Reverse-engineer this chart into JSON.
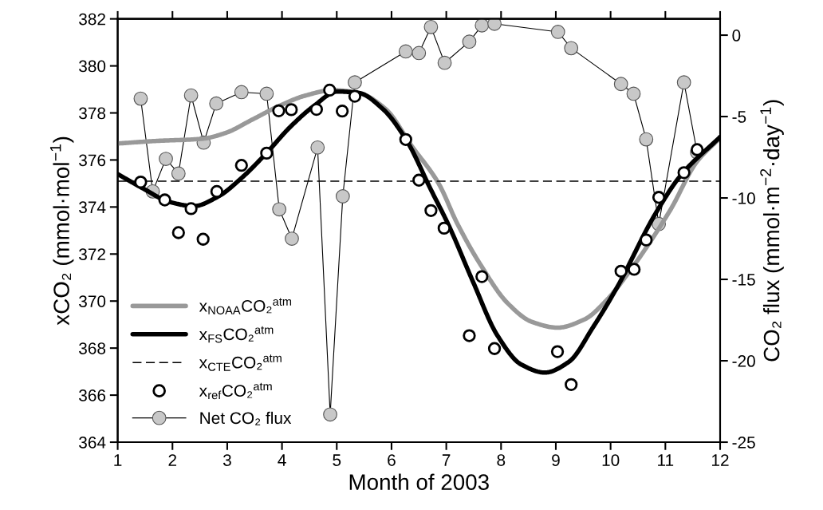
{
  "chart_data": {
    "type": "line",
    "xlabel": "Month of 2003",
    "ylabel": "xCO₂ (mmol·mol$^{−1}$)",
    "y2label": "CO₂ flux (mmol·m$^{−2}$·day$^{−1}$)",
    "xlim": [
      1,
      12
    ],
    "xticks": [
      1,
      2,
      3,
      4,
      5,
      6,
      7,
      8,
      9,
      10,
      11,
      12
    ],
    "ylim": [
      364,
      382
    ],
    "yticks": [
      364,
      366,
      368,
      370,
      372,
      374,
      376,
      378,
      380,
      382
    ],
    "y2lim": [
      -25,
      1
    ],
    "y2ticks": [
      -25,
      -20,
      -15,
      -10,
      -5,
      0
    ],
    "grid": false,
    "legend": "lower left",
    "marker": "none",
    "line_style": "solid",
    "series": [
      {
        "name": "x$_{NOAA}$CO₂$^{atm}$",
        "color": "#999999",
        "x": [
          1.0,
          1.71,
          2.54,
          2.97,
          3.46,
          3.94,
          4.43,
          4.92,
          5.4,
          5.89,
          6.37,
          6.86,
          7.2,
          7.64,
          8.12,
          8.56,
          9.03,
          9.53,
          9.92,
          10.31,
          11.09,
          11.57,
          12.0
        ],
        "values": [
          376.7,
          376.81,
          376.9,
          377.15,
          377.72,
          378.29,
          378.74,
          378.97,
          378.85,
          378.17,
          376.59,
          375.0,
          373.3,
          371.49,
          369.91,
          369.12,
          368.87,
          369.23,
          370.02,
          371.15,
          373.87,
          375.91,
          376.94
        ]
      },
      {
        "name": "x$_{FS}$CO₂$^{atm}$",
        "color": "#000000",
        "x": [
          1.0,
          1.47,
          1.95,
          2.39,
          2.83,
          3.26,
          3.7,
          4.14,
          4.58,
          5.01,
          5.4,
          5.84,
          6.28,
          6.71,
          7.05,
          7.49,
          7.93,
          8.37,
          8.8,
          9.24,
          9.68,
          10.12,
          10.8,
          11.28,
          12.0
        ],
        "values": [
          375.4,
          374.78,
          374.21,
          374.04,
          374.44,
          375.23,
          376.25,
          377.38,
          378.29,
          378.91,
          378.85,
          378.17,
          376.81,
          374.78,
          373.19,
          370.81,
          368.55,
          367.3,
          366.96,
          367.42,
          368.89,
          370.59,
          373.64,
          375.34,
          376.98
        ]
      },
      {
        "name": "x$_{CTE}$CO₂$^{atm}$",
        "color": "#000000",
        "line_style": "dashed",
        "x": [
          1,
          12
        ],
        "values": [
          375.1,
          375.1
        ]
      },
      {
        "name": "x$_{ref}$CO₂$^{atm}$",
        "type": "scatter",
        "color": "#000000",
        "marker": "circle",
        "x": [
          1.42,
          1.86,
          2.11,
          2.34,
          2.56,
          2.81,
          3.26,
          3.72,
          3.94,
          4.17,
          4.63,
          4.87,
          5.1,
          5.33,
          6.26,
          6.5,
          6.72,
          6.96,
          7.42,
          7.65,
          7.88,
          9.03,
          9.28,
          10.19,
          10.43,
          10.65,
          10.88,
          11.34,
          11.58
        ],
        "values": [
          375.06,
          374.3,
          372.91,
          373.93,
          372.63,
          374.66,
          375.77,
          376.29,
          378.09,
          378.14,
          378.15,
          378.97,
          378.08,
          378.71,
          376.87,
          375.14,
          373.85,
          373.1,
          368.53,
          371.04,
          367.98,
          367.85,
          366.45,
          371.27,
          371.35,
          372.6,
          374.41,
          375.46,
          376.44
        ]
      },
      {
        "name": "Net CO₂ flux",
        "axis": "y2",
        "color": "#c8c8c8",
        "marker": "circle",
        "x": [
          1.42,
          1.64,
          1.88,
          2.11,
          2.34,
          2.57,
          2.8,
          3.26,
          3.72,
          3.95,
          4.18,
          4.65,
          4.88,
          5.11,
          5.33,
          6.26,
          6.5,
          6.72,
          6.97,
          7.42,
          7.65,
          7.88,
          9.04,
          9.28,
          10.19,
          10.42,
          10.65,
          10.88,
          11.34,
          11.58
        ],
        "values": [
          -3.9,
          -9.6,
          -7.6,
          -8.5,
          -3.7,
          -6.6,
          -4.2,
          -3.5,
          -3.6,
          -10.7,
          -12.5,
          -6.9,
          -23.3,
          -9.9,
          -2.9,
          -1.0,
          -1.1,
          0.5,
          -1.7,
          -0.4,
          0.6,
          0.7,
          0.2,
          -0.8,
          -3.0,
          -3.6,
          -6.4,
          -11.6,
          -2.9,
          -7.2
        ]
      }
    ]
  }
}
